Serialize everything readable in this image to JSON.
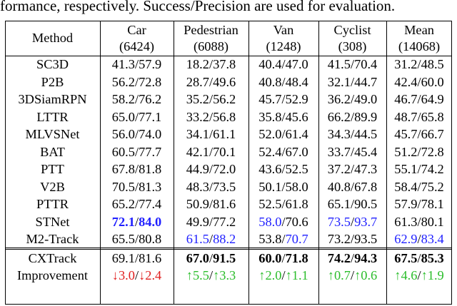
{
  "caption": "formance, respectively. Success/Precision are used for evaluation.",
  "header": {
    "method": "Method",
    "columns": [
      {
        "name": "Car",
        "count": "(6424)"
      },
      {
        "name": "Pedestrian",
        "count": "(6088)"
      },
      {
        "name": "Van",
        "count": "(1248)"
      },
      {
        "name": "Cyclist",
        "count": "(308)"
      },
      {
        "name": "Mean",
        "count": "(14068)"
      }
    ]
  },
  "rows": [
    {
      "method": "SC3D",
      "values": [
        [
          "41.3",
          "57.9"
        ],
        [
          "18.2",
          "37.8"
        ],
        [
          "40.4",
          "47.0"
        ],
        [
          "41.5",
          "70.4"
        ],
        [
          "31.2",
          "48.5"
        ]
      ]
    },
    {
      "method": "P2B",
      "values": [
        [
          "56.2",
          "72.8"
        ],
        [
          "28.7",
          "49.6"
        ],
        [
          "40.8",
          "48.4"
        ],
        [
          "32.1",
          "44.7"
        ],
        [
          "42.4",
          "60.0"
        ]
      ]
    },
    {
      "method": "3DSiamRPN",
      "values": [
        [
          "58.2",
          "76.2"
        ],
        [
          "35.2",
          "56.2"
        ],
        [
          "45.7",
          "52.9"
        ],
        [
          "36.2",
          "49.0"
        ],
        [
          "46.7",
          "64.9"
        ]
      ]
    },
    {
      "method": "LTTR",
      "values": [
        [
          "65.0",
          "77.1"
        ],
        [
          "33.2",
          "56.8"
        ],
        [
          "35.8",
          "45.6"
        ],
        [
          "66.2",
          "89.9"
        ],
        [
          "48.7",
          "65.8"
        ]
      ]
    },
    {
      "method": "MLVSNet",
      "values": [
        [
          "56.0",
          "74.0"
        ],
        [
          "34.1",
          "61.1"
        ],
        [
          "52.0",
          "61.4"
        ],
        [
          "34.3",
          "44.5"
        ],
        [
          "45.7",
          "66.7"
        ]
      ]
    },
    {
      "method": "BAT",
      "values": [
        [
          "60.5",
          "77.7"
        ],
        [
          "42.1",
          "70.1"
        ],
        [
          "52.4",
          "67.0"
        ],
        [
          "33.7",
          "45.4"
        ],
        [
          "51.2",
          "72.8"
        ]
      ]
    },
    {
      "method": "PTT",
      "values": [
        [
          "67.8",
          "81.8"
        ],
        [
          "44.9",
          "72.0"
        ],
        [
          "43.6",
          "52.5"
        ],
        [
          "37.2",
          "47.3"
        ],
        [
          "55.1",
          "74.2"
        ]
      ]
    },
    {
      "method": "V2B",
      "values": [
        [
          "70.5",
          "81.3"
        ],
        [
          "48.3",
          "73.5"
        ],
        [
          "50.1",
          "58.0"
        ],
        [
          "40.8",
          "67.8"
        ],
        [
          "58.4",
          "75.2"
        ]
      ]
    },
    {
      "method": "PTTR",
      "values": [
        [
          "65.2",
          "77.4"
        ],
        [
          "50.9",
          "81.6"
        ],
        [
          "52.5",
          "61.8"
        ],
        [
          "65.1",
          "90.5"
        ],
        [
          "57.9",
          "78.1"
        ]
      ]
    },
    {
      "method": "STNet",
      "values": [
        [
          "72.1",
          "84.0"
        ],
        [
          "49.9",
          "77.2"
        ],
        [
          "58.0",
          "70.6"
        ],
        [
          "73.5",
          "93.7"
        ],
        [
          "61.3",
          "80.1"
        ]
      ]
    },
    {
      "method": "M2-Track",
      "values": [
        [
          "65.5",
          "80.8"
        ],
        [
          "61.5",
          "88.2"
        ],
        [
          "53.8",
          "70.7"
        ],
        [
          "73.2",
          "93.5"
        ],
        [
          "62.9",
          "83.4"
        ]
      ]
    }
  ],
  "ours": {
    "method": "CXTrack",
    "values": [
      [
        "69.1",
        "81.6"
      ],
      [
        "67.0",
        "91.5"
      ],
      [
        "60.0",
        "71.8"
      ],
      [
        "74.2",
        "94.3"
      ],
      [
        "67.5",
        "85.3"
      ]
    ]
  },
  "improvement": {
    "method": "Improvement",
    "values": [
      [
        "↓3.0",
        "↓2.4"
      ],
      [
        "↑5.5",
        "↑3.3"
      ],
      [
        "↑2.0",
        "↑1.1"
      ],
      [
        "↑0.7",
        "↑0.6"
      ],
      [
        "↑4.6",
        "↑1.9"
      ]
    ]
  }
}
